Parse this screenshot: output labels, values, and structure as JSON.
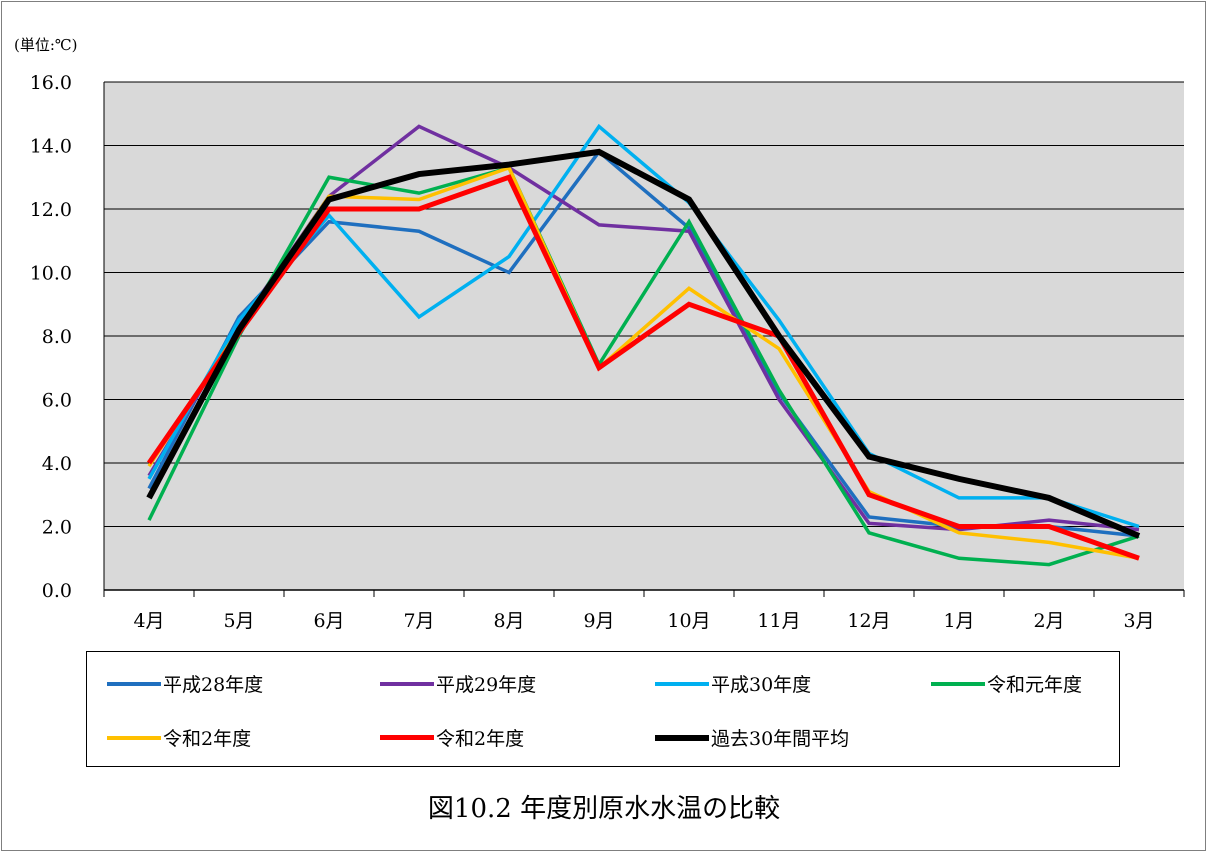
{
  "chart_data": {
    "type": "line",
    "title": "図10.2 年度別原水水温の比較",
    "unit_label": "(単位:℃)",
    "categories": [
      "4月",
      "5月",
      "6月",
      "7月",
      "8月",
      "9月",
      "10月",
      "11月",
      "12月",
      "1月",
      "2月",
      "3月"
    ],
    "y_ticks": [
      "0.0",
      "2.0",
      "4.0",
      "6.0",
      "8.0",
      "10.0",
      "12.0",
      "14.0",
      "16.0"
    ],
    "ylim": [
      0,
      16
    ],
    "grid": true,
    "plot_background": "#d9d9d9",
    "legend_position": "bottom",
    "series": [
      {
        "name": "平成28年度",
        "color": "#1f6fbf",
        "values": [
          3.2,
          8.6,
          11.6,
          11.3,
          10.0,
          13.8,
          11.4,
          6.2,
          2.3,
          2.0,
          2.0,
          1.7
        ]
      },
      {
        "name": "平成29年度",
        "color": "#7030a0",
        "values": [
          3.6,
          8.3,
          12.4,
          14.6,
          13.3,
          11.5,
          11.3,
          6.0,
          2.1,
          1.9,
          2.2,
          1.9
        ]
      },
      {
        "name": "平成30年度",
        "color": "#00b0f0",
        "values": [
          3.5,
          8.5,
          11.8,
          8.6,
          10.5,
          14.6,
          12.2,
          8.5,
          4.3,
          2.9,
          2.9,
          2.0
        ]
      },
      {
        "name": "令和元年度",
        "color": "#00b050",
        "values": [
          2.2,
          8.0,
          13.0,
          12.5,
          13.3,
          7.1,
          11.6,
          6.3,
          1.8,
          1.0,
          0.8,
          1.7
        ]
      },
      {
        "name": "令和2年度",
        "color": "#ffc000",
        "values": [
          3.9,
          8.2,
          12.4,
          12.3,
          13.3,
          7.0,
          9.5,
          7.6,
          3.1,
          1.8,
          1.5,
          1.0
        ]
      },
      {
        "name": "令和2年度",
        "color": "#ff0000",
        "values": [
          4.0,
          8.1,
          12.0,
          12.0,
          13.0,
          7.0,
          9.0,
          8.0,
          3.0,
          2.0,
          2.0,
          1.0
        ]
      },
      {
        "name": "過去30年間平均",
        "color": "#000000",
        "values": [
          2.9,
          8.2,
          12.3,
          13.1,
          13.4,
          13.8,
          12.3,
          8.0,
          4.2,
          3.5,
          2.9,
          1.7
        ]
      }
    ]
  }
}
